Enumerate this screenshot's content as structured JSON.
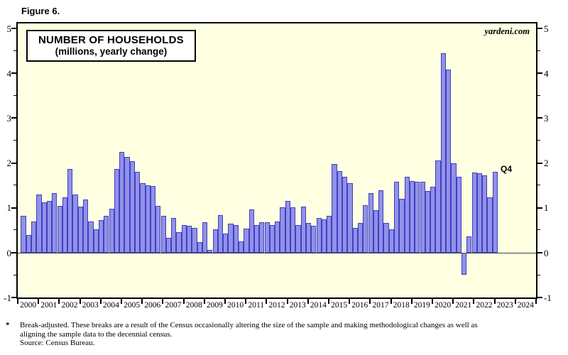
{
  "figure_label": "Figure 6.",
  "watermark": "yardeni.com",
  "chart_data": {
    "type": "bar",
    "title": "NUMBER OF HOUSEHOLDS",
    "subtitle": "(millions, yearly change)",
    "ylabel": "millions, yearly change",
    "xlabel": "",
    "ylim": [
      -1,
      5
    ],
    "y_major_step": 1,
    "y_minor_step": 0.5,
    "y_tick_labels": [
      "-1",
      "0",
      "1",
      "2",
      "3",
      "4",
      "5"
    ],
    "dual_y_axis": true,
    "grid": "off",
    "legend_position": "none",
    "plot_bg": "#ffffe2",
    "bar_fill": "#9191ea",
    "bar_border": "#4040c0",
    "x_years": [
      2000,
      2001,
      2002,
      2003,
      2004,
      2005,
      2006,
      2007,
      2008,
      2009,
      2010,
      2011,
      2012,
      2013,
      2014,
      2015,
      2016,
      2017,
      2018,
      2019,
      2020,
      2021,
      2022,
      2023,
      2024
    ],
    "series_name": "Number of households, yearly change (quarterly data)",
    "values_by_year": [
      {
        "year": 2000,
        "q": [
          0.82,
          0.4,
          0.7,
          1.3
        ]
      },
      {
        "year": 2001,
        "q": [
          1.12,
          1.15,
          1.33,
          1.04
        ]
      },
      {
        "year": 2002,
        "q": [
          1.24,
          1.87,
          1.3,
          1.03
        ]
      },
      {
        "year": 2003,
        "q": [
          1.18,
          0.69,
          0.53,
          0.73
        ]
      },
      {
        "year": 2004,
        "q": [
          0.83,
          0.98,
          1.86,
          2.24
        ]
      },
      {
        "year": 2005,
        "q": [
          2.14,
          2.04,
          1.81,
          1.55
        ]
      },
      {
        "year": 2006,
        "q": [
          1.5,
          1.49,
          1.04,
          0.83
        ]
      },
      {
        "year": 2007,
        "q": [
          0.34,
          0.77,
          0.46,
          0.62
        ]
      },
      {
        "year": 2008,
        "q": [
          0.6,
          0.56,
          0.24,
          0.68
        ]
      },
      {
        "year": 2009,
        "q": [
          0.07,
          0.53,
          0.84,
          0.43
        ]
      },
      {
        "year": 2010,
        "q": [
          0.65,
          0.62,
          0.25,
          0.54
        ]
      },
      {
        "year": 2011,
        "q": [
          0.97,
          0.61,
          0.68,
          0.68
        ]
      },
      {
        "year": 2012,
        "q": [
          0.61,
          0.69,
          1.02,
          1.16
        ]
      },
      {
        "year": 2013,
        "q": [
          1.02,
          0.61,
          1.03,
          0.66
        ]
      },
      {
        "year": 2014,
        "q": [
          0.6,
          0.78,
          0.74,
          0.82
        ]
      },
      {
        "year": 2015,
        "q": [
          1.98,
          1.82,
          1.69,
          1.55
        ]
      },
      {
        "year": 2016,
        "q": [
          0.56,
          0.66,
          1.06,
          1.33
        ]
      },
      {
        "year": 2017,
        "q": [
          0.95,
          1.4,
          0.66,
          0.52
        ]
      },
      {
        "year": 2018,
        "q": [
          1.59,
          1.2,
          1.7,
          1.6
        ]
      },
      {
        "year": 2019,
        "q": [
          1.58,
          1.58,
          1.37,
          1.48
        ]
      },
      {
        "year": 2020,
        "q": [
          2.06,
          4.45,
          4.09,
          1.99
        ]
      },
      {
        "year": 2021,
        "q": [
          1.69,
          -0.49,
          0.37,
          1.79
        ]
      },
      {
        "year": 2022,
        "q": [
          1.78,
          1.72,
          1.24,
          1.81
        ]
      }
    ],
    "last_point_label": "Q4"
  },
  "footnote": {
    "marker": "*",
    "line1": "Break-adjusted. These breaks are a result of the Census occasionally altering the size of the sample and making methodological changes as well as",
    "line2": "aligning the sample data to the decennial census.",
    "source": "Source: Census Bureau."
  }
}
